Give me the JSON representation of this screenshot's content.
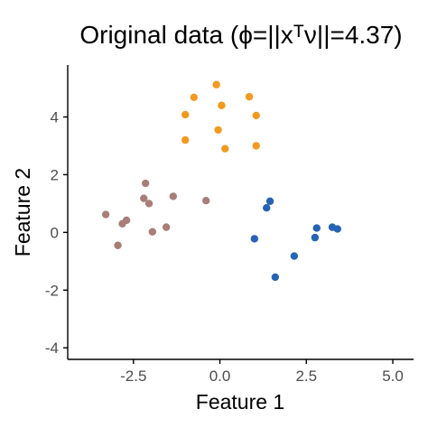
{
  "chart_data": {
    "type": "scatter",
    "title": "Original data (ϕ=||xᵀν||=4.37)",
    "xlabel": "Feature 1",
    "ylabel": "Feature 2",
    "xlim": [
      -4.4,
      5.6
    ],
    "ylim": [
      -4.4,
      5.8
    ],
    "xticks": [
      -2.5,
      0.0,
      2.5,
      5.0
    ],
    "xtick_labels": [
      "-2.5",
      "0.0",
      "2.5",
      "5.0"
    ],
    "yticks": [
      -4,
      -2,
      0,
      2,
      4
    ],
    "ytick_labels": [
      "-4",
      "-2",
      "0",
      "2",
      "4"
    ],
    "grid": false,
    "legend": "none",
    "series": [
      {
        "color": "#f29a1f",
        "points": [
          [
            -0.1,
            5.12
          ],
          [
            -0.75,
            4.68
          ],
          [
            0.85,
            4.7
          ],
          [
            -1.0,
            4.08
          ],
          [
            0.05,
            4.4
          ],
          [
            1.05,
            4.05
          ],
          [
            -1.0,
            3.2
          ],
          [
            -0.05,
            3.55
          ],
          [
            0.15,
            2.9
          ],
          [
            1.05,
            3.0
          ]
        ]
      },
      {
        "color": "#a87e7a",
        "points": [
          [
            -3.3,
            0.62
          ],
          [
            -2.7,
            0.42
          ],
          [
            -2.82,
            0.3
          ],
          [
            -2.95,
            -0.45
          ],
          [
            -2.15,
            1.7
          ],
          [
            -2.2,
            1.18
          ],
          [
            -2.05,
            1.0
          ],
          [
            -1.35,
            1.25
          ],
          [
            -0.4,
            1.1
          ],
          [
            -1.55,
            0.18
          ],
          [
            -1.95,
            0.02
          ]
        ]
      },
      {
        "color": "#2563b5",
        "points": [
          [
            1.45,
            1.08
          ],
          [
            1.35,
            0.85
          ],
          [
            1.0,
            -0.22
          ],
          [
            2.8,
            0.15
          ],
          [
            2.75,
            -0.18
          ],
          [
            3.25,
            0.18
          ],
          [
            3.4,
            0.12
          ],
          [
            2.15,
            -0.82
          ],
          [
            1.6,
            -1.55
          ]
        ]
      }
    ]
  }
}
